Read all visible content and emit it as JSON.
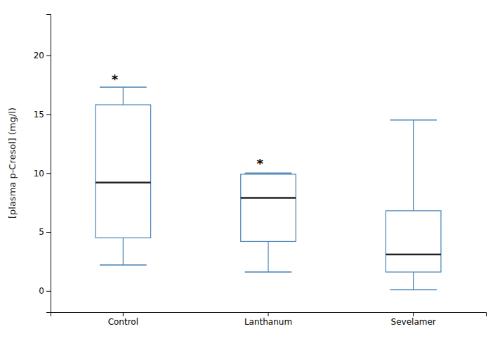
{
  "chart_data": {
    "type": "box",
    "categories": [
      "Control",
      "Lanthanum",
      "Sevelamer"
    ],
    "whisker_low": [
      2.2,
      1.6,
      0.1
    ],
    "q1": [
      4.5,
      4.2,
      1.6
    ],
    "median": [
      9.2,
      7.9,
      3.1
    ],
    "q3": [
      15.8,
      9.9,
      6.8
    ],
    "whisker_high": [
      17.3,
      10.0,
      14.5
    ],
    "y_label": "[plasma p-Cresol] (mg/l)",
    "ylim": [
      -1.8,
      23.5
    ],
    "yticks": [
      0,
      5,
      10,
      15,
      20
    ],
    "grid": false,
    "annotations": [
      {
        "text": "*",
        "x": "Control",
        "y": 18.2
      },
      {
        "text": "*",
        "x": "Lanthanum",
        "y": 11.0
      }
    ]
  }
}
